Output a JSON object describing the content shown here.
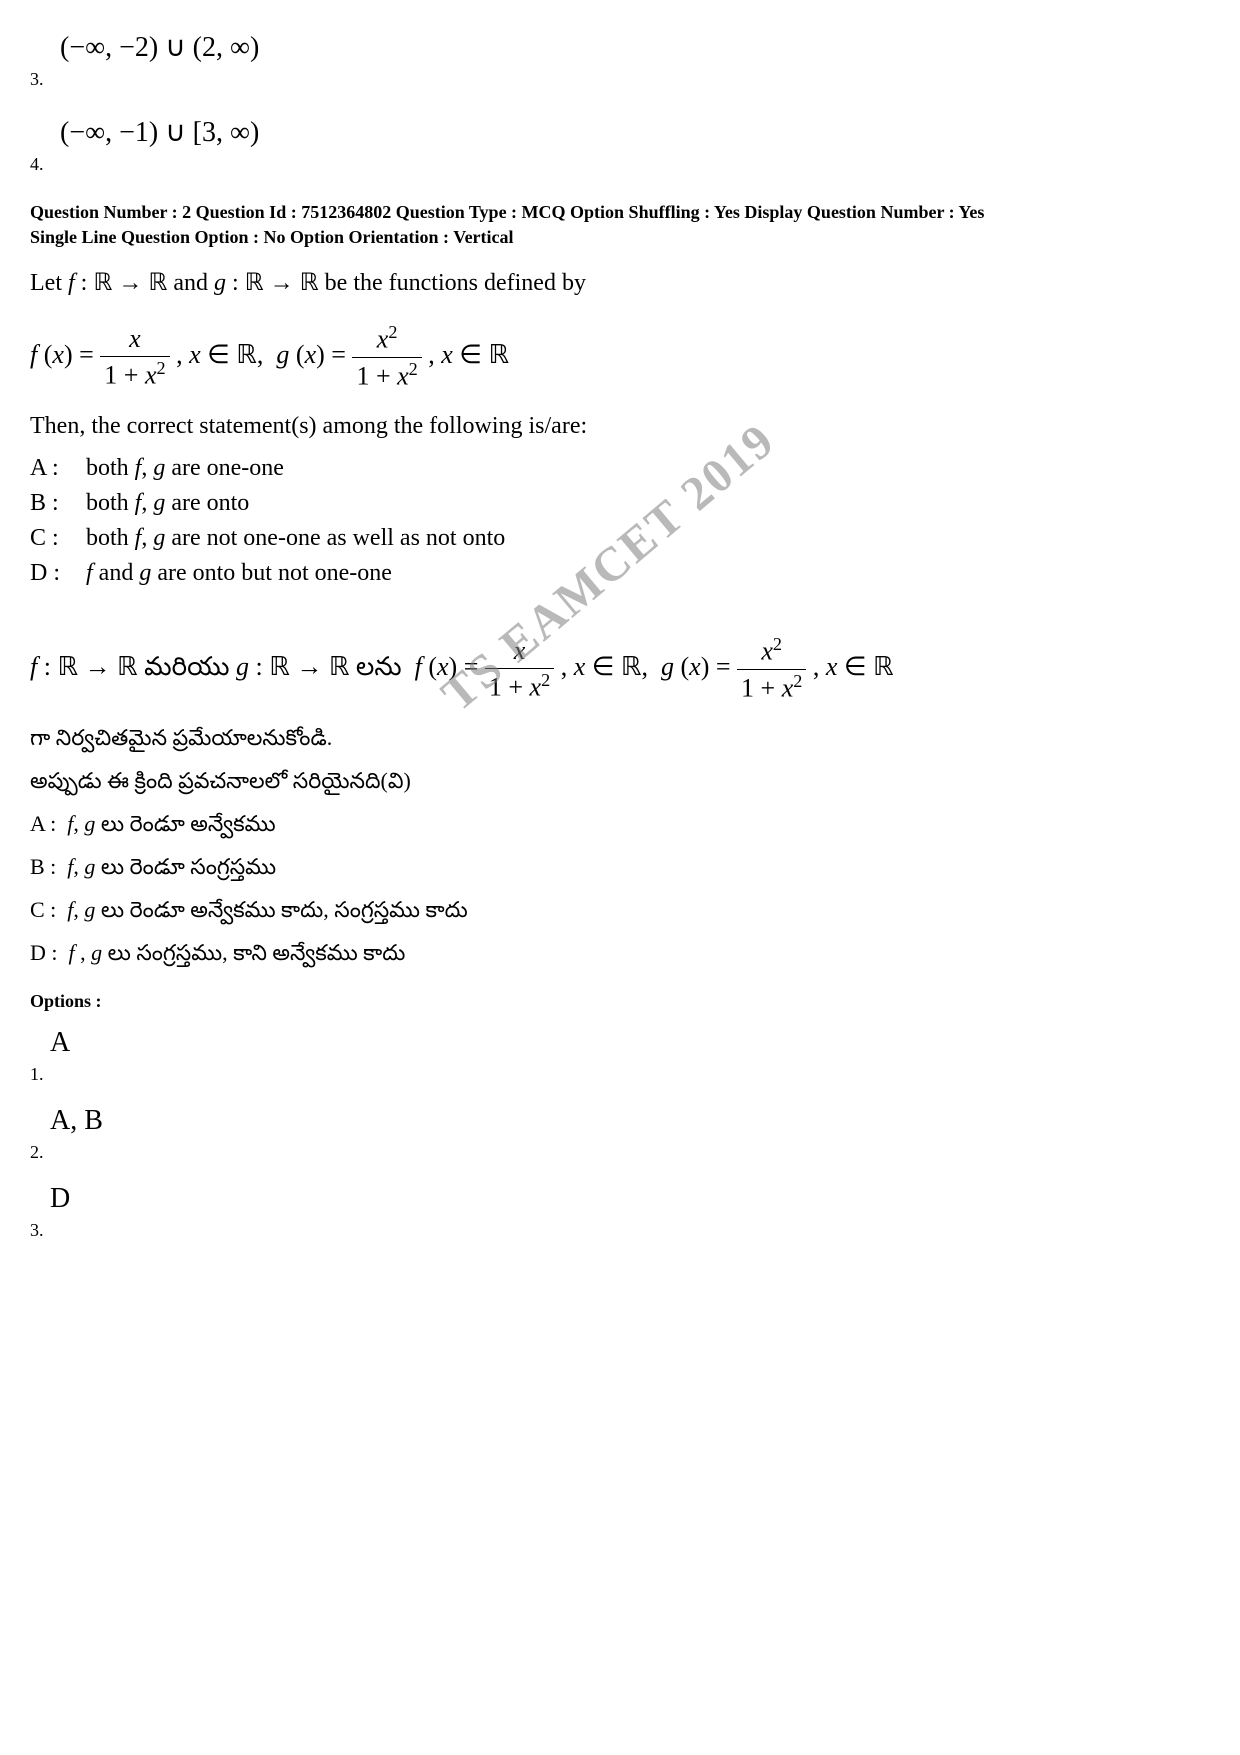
{
  "watermark": "TS EAMCET 2019",
  "prev_options": {
    "opt3": {
      "math": "(−∞, −2) ∪ (2, ∞)",
      "num": "3."
    },
    "opt4": {
      "math": "(−∞, −1) ∪ [3, ∞)",
      "num": "4."
    }
  },
  "question_meta": {
    "line1": "Question Number : 2  Question Id : 7512364802  Question Type : MCQ  Option Shuffling : Yes  Display Question Number : Yes",
    "line2": "Single Line Question Option : No  Option Orientation : Vertical"
  },
  "question": {
    "intro_en": "Let f : ℝ → ℝ and g : ℝ → ℝ be the functions defined by",
    "statement_intro_en": "Then, the correct statement(s) among the following is/are:",
    "statements_en": {
      "A": {
        "label": "A :",
        "text": "both f, g are one-one"
      },
      "B": {
        "label": "B :",
        "text": "both f, g are onto"
      },
      "C": {
        "label": "C :",
        "text": "both f, g are not one-one as well as not onto"
      },
      "D": {
        "label": "D :",
        "text": "f and g are onto but not one-one"
      }
    },
    "telugu_line1_prefix": "f : ℝ → ℝ మరియు g : ℝ → ℝ లను ",
    "telugu_line2": "గా నిర్వచితమైన ప్రమేయాలనుకోండి.",
    "telugu_line3": "అప్పుడు ఈ క్రింది ప్రవచనాలలో సరియైనది(వి)",
    "statements_te": {
      "A": {
        "label": "A :",
        "text": "f, g లు రెండూ అన్వేకము"
      },
      "B": {
        "label": "B :",
        "text": "f, g లు రెండూ సంగ్రస్తము"
      },
      "C": {
        "label": "C :",
        "text": "f, g లు రెండూ అన్వేకము కాదు, సంగ్రస్తము కాదు"
      },
      "D": {
        "label": "D :",
        "text": "f , g లు సంగ్రస్తము, కాని అన్వేకము కాదు"
      }
    }
  },
  "options_header": "Options :",
  "options": {
    "opt1": {
      "letter": "A",
      "num": "1."
    },
    "opt2": {
      "letter": "A, B",
      "num": "2."
    },
    "opt3": {
      "letter": "D",
      "num": "3."
    }
  },
  "formula_parts": {
    "fx_prefix": "f (x) = ",
    "gx_prefix": ", x ∈ ℝ,  g (x) = ",
    "suffix": " , x ∈ ℝ",
    "f_num": "x",
    "f_den": "1 + x",
    "g_num": "x",
    "g_den": "1 + x"
  },
  "colors": {
    "text": "#000000",
    "background": "#ffffff",
    "watermark": "#808080"
  }
}
